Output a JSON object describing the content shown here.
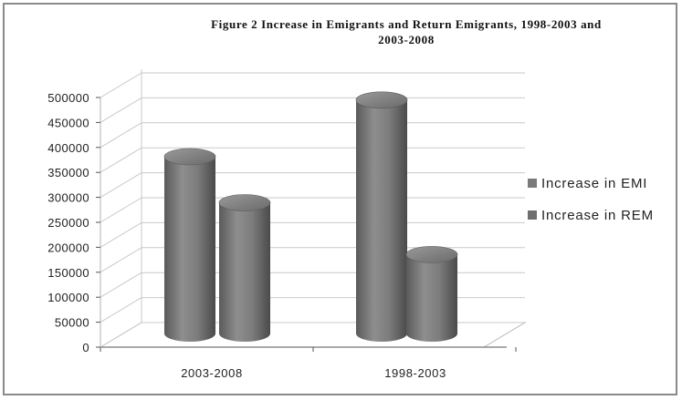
{
  "chart_data": {
    "type": "bar",
    "title_lines": [
      "Figure 2 Increase in Emigrants and Return Emigrants, 1998-2003 and",
      "2003-2008"
    ],
    "categories": [
      "2003-2008",
      "1998-2003"
    ],
    "series": [
      {
        "name": "Increase in EMI",
        "values": [
          365000,
          482000
        ],
        "color": "#7a7a7a"
      },
      {
        "name": "Increase in REM",
        "values": [
          270000,
          163000
        ],
        "color": "#6e6e6e"
      }
    ],
    "yticks": [
      "0",
      "50000",
      "100000",
      "150000",
      "200000",
      "250000",
      "300000",
      "350000",
      "400000",
      "450000",
      "500000"
    ],
    "ylim": [
      0,
      500000
    ],
    "grid": true,
    "legend_position": "right",
    "style": "3d-cylinder"
  }
}
